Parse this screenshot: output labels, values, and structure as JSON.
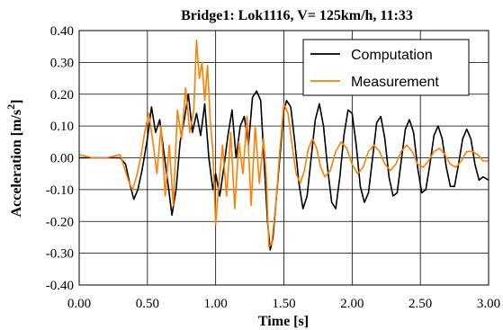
{
  "chart_data": {
    "type": "line",
    "title": "Bridge1: Lok1116, V= 125km/h, 11:33",
    "xlabel": "Time [s]",
    "ylabel": "Acceleration [m/s",
    "ylabel_sup": "2",
    "ylabel_end": "]",
    "xlim": [
      0,
      3.0
    ],
    "ylim": [
      -0.4,
      0.4
    ],
    "x_ticks": [
      "0.00",
      "0.50",
      "1.00",
      "1.50",
      "2.00",
      "2.50",
      "3.00"
    ],
    "y_ticks": [
      "0.40",
      "0.30",
      "0.20",
      "0.10",
      "0.00",
      "-0.10",
      "-0.20",
      "-0.30",
      "-0.40"
    ],
    "grid": true,
    "legend_position": "top-right",
    "series": [
      {
        "name": "Computation",
        "color": "#000000",
        "x": [
          0.0,
          0.1,
          0.2,
          0.3,
          0.34,
          0.37,
          0.4,
          0.43,
          0.46,
          0.5,
          0.53,
          0.56,
          0.59,
          0.62,
          0.65,
          0.68,
          0.71,
          0.74,
          0.77,
          0.8,
          0.83,
          0.86,
          0.89,
          0.92,
          0.95,
          0.98,
          1.0,
          1.03,
          1.06,
          1.09,
          1.12,
          1.15,
          1.18,
          1.21,
          1.24,
          1.27,
          1.3,
          1.33,
          1.36,
          1.38,
          1.4,
          1.42,
          1.45,
          1.48,
          1.5,
          1.52,
          1.55,
          1.58,
          1.61,
          1.64,
          1.67,
          1.7,
          1.73,
          1.76,
          1.79,
          1.82,
          1.85,
          1.88,
          1.91,
          1.94,
          1.97,
          2.0,
          2.03,
          2.06,
          2.09,
          2.12,
          2.15,
          2.18,
          2.21,
          2.24,
          2.27,
          2.3,
          2.33,
          2.36,
          2.39,
          2.42,
          2.45,
          2.48,
          2.51,
          2.54,
          2.57,
          2.6,
          2.63,
          2.66,
          2.69,
          2.72,
          2.75,
          2.78,
          2.81,
          2.84,
          2.87,
          2.9,
          2.93,
          2.96,
          3.0
        ],
        "y": [
          0.0,
          0.0,
          0.0,
          0.0,
          -0.02,
          -0.08,
          -0.13,
          -0.1,
          -0.04,
          0.06,
          0.16,
          0.08,
          0.12,
          0.02,
          -0.08,
          -0.18,
          -0.1,
          0.05,
          0.12,
          0.2,
          0.08,
          0.14,
          0.07,
          0.17,
          0.0,
          -0.1,
          -0.05,
          -0.12,
          -0.03,
          0.07,
          0.15,
          0.0,
          0.1,
          0.13,
          0.04,
          0.19,
          0.21,
          0.18,
          -0.05,
          -0.2,
          -0.29,
          -0.25,
          -0.1,
          0.05,
          0.15,
          0.18,
          0.16,
          0.05,
          -0.08,
          -0.16,
          -0.12,
          0.0,
          0.12,
          0.17,
          0.1,
          -0.03,
          -0.14,
          -0.16,
          -0.06,
          0.07,
          0.15,
          0.14,
          0.04,
          -0.09,
          -0.14,
          -0.11,
          0.0,
          0.11,
          0.13,
          0.06,
          -0.06,
          -0.12,
          -0.11,
          -0.01,
          0.09,
          0.12,
          0.08,
          -0.03,
          -0.11,
          -0.1,
          -0.02,
          0.07,
          0.1,
          0.06,
          -0.03,
          -0.09,
          -0.09,
          -0.02,
          0.06,
          0.09,
          0.06,
          -0.02,
          -0.07,
          -0.06,
          -0.07
        ]
      },
      {
        "name": "Measurement",
        "color": "#ff7f00",
        "x": [
          0.0,
          0.1,
          0.2,
          0.3,
          0.33,
          0.36,
          0.39,
          0.42,
          0.45,
          0.48,
          0.51,
          0.54,
          0.57,
          0.6,
          0.63,
          0.66,
          0.69,
          0.72,
          0.75,
          0.78,
          0.81,
          0.84,
          0.86,
          0.88,
          0.9,
          0.92,
          0.94,
          0.96,
          0.98,
          1.0,
          1.02,
          1.05,
          1.08,
          1.11,
          1.14,
          1.17,
          1.2,
          1.23,
          1.26,
          1.29,
          1.32,
          1.35,
          1.37,
          1.39,
          1.41,
          1.44,
          1.47,
          1.5,
          1.53,
          1.56,
          1.59,
          1.62,
          1.65,
          1.68,
          1.71,
          1.74,
          1.77,
          1.8,
          1.84,
          1.88,
          1.92,
          1.96,
          2.0,
          2.04,
          2.08,
          2.12,
          2.16,
          2.2,
          2.24,
          2.28,
          2.32,
          2.36,
          2.4,
          2.44,
          2.48,
          2.52,
          2.56,
          2.6,
          2.64,
          2.68,
          2.72,
          2.76,
          2.8,
          2.84,
          2.88,
          2.92,
          2.96,
          3.0
        ],
        "y": [
          0.01,
          0.0,
          0.0,
          0.01,
          -0.03,
          -0.07,
          -0.1,
          -0.06,
          0.0,
          0.08,
          0.14,
          0.05,
          -0.05,
          0.1,
          -0.12,
          0.04,
          -0.15,
          0.15,
          0.06,
          0.22,
          0.08,
          0.15,
          0.37,
          0.25,
          0.3,
          0.18,
          0.29,
          0.12,
          0.02,
          -0.21,
          -0.1,
          0.04,
          -0.12,
          0.08,
          -0.16,
          0.05,
          -0.05,
          0.13,
          -0.15,
          0.1,
          -0.08,
          0.06,
          -0.05,
          -0.28,
          -0.27,
          -0.15,
          0.02,
          0.17,
          0.14,
          0.04,
          -0.05,
          -0.08,
          -0.04,
          0.03,
          0.06,
          0.03,
          -0.03,
          -0.06,
          -0.04,
          0.02,
          0.05,
          0.03,
          -0.02,
          -0.05,
          -0.03,
          0.02,
          0.04,
          0.02,
          -0.02,
          -0.04,
          -0.02,
          0.02,
          0.04,
          0.02,
          -0.02,
          -0.03,
          -0.01,
          0.02,
          0.03,
          0.01,
          -0.02,
          -0.03,
          -0.01,
          0.02,
          0.02,
          0.01,
          -0.01,
          -0.01
        ]
      }
    ]
  }
}
